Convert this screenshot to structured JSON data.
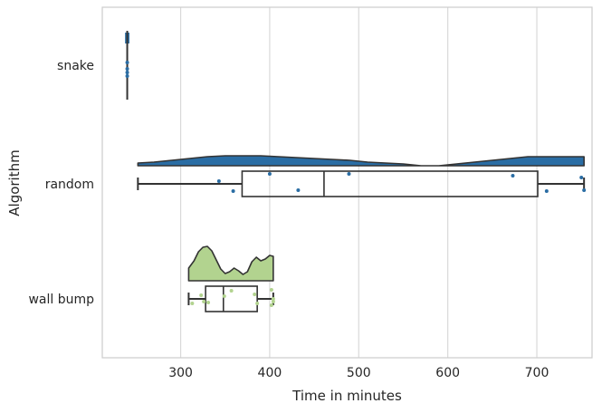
{
  "chart_data": {
    "type": "raincloud",
    "xlabel": "Time in minutes",
    "ylabel": "Algorithm",
    "xlim": [
      212,
      762
    ],
    "x_ticks": [
      300,
      400,
      500,
      600,
      700
    ],
    "x_tick_labels": [
      "300",
      "400",
      "500",
      "600",
      "700"
    ],
    "grid": "vertical",
    "categories": [
      "snake",
      "random",
      "wall bump"
    ],
    "series": [
      {
        "category": "snake",
        "color": "#2a6da4",
        "box": {
          "min": 240,
          "q1": 240,
          "median": 240,
          "q3": 240,
          "max": 240
        },
        "cloud_half_width": [
          2.4,
          2.4,
          2.4,
          2.4
        ],
        "cloud_density": [
          0.09,
          0.09,
          0.09,
          0.09
        ],
        "points": [
          [
            240,
            -0.03
          ],
          [
            240,
            0.04
          ],
          [
            240,
            0.08
          ],
          [
            240,
            0.12
          ]
        ]
      },
      {
        "category": "random",
        "color": "#2a6da4",
        "box": {
          "min": 252,
          "q1": 369,
          "median": 461,
          "q3": 701,
          "max": 753
        },
        "density_x": [
          252,
          270,
          290,
          310,
          330,
          350,
          370,
          390,
          410,
          430,
          450,
          470,
          490,
          510,
          530,
          550,
          570,
          590,
          610,
          630,
          650,
          670,
          690,
          710,
          730,
          753
        ],
        "density": [
          0.03,
          0.04,
          0.06,
          0.08,
          0.1,
          0.11,
          0.11,
          0.11,
          0.1,
          0.09,
          0.08,
          0.07,
          0.06,
          0.04,
          0.03,
          0.02,
          0.0,
          0.0,
          0.02,
          0.04,
          0.06,
          0.08,
          0.1,
          0.1,
          0.1,
          0.1
        ],
        "points": [
          [
            343,
            -0.03
          ],
          [
            359,
            0.08
          ],
          [
            400,
            -0.11
          ],
          [
            432,
            0.07
          ],
          [
            489,
            -0.11
          ],
          [
            673,
            -0.09
          ],
          [
            711,
            0.08
          ],
          [
            750,
            -0.07
          ],
          [
            753,
            0.07
          ]
        ]
      },
      {
        "category": "wall bump",
        "color": "#b2d38f",
        "box": {
          "min": 309,
          "q1": 328,
          "median": 348,
          "q3": 386,
          "max": 404
        },
        "density_x": [
          309,
          315,
          320,
          325,
          330,
          335,
          340,
          345,
          350,
          355,
          360,
          365,
          370,
          375,
          380,
          385,
          390,
          395,
          400,
          404
        ],
        "density": [
          0.14,
          0.22,
          0.32,
          0.37,
          0.38,
          0.33,
          0.23,
          0.13,
          0.08,
          0.1,
          0.14,
          0.11,
          0.07,
          0.1,
          0.21,
          0.26,
          0.22,
          0.24,
          0.28,
          0.27
        ],
        "points": [
          [
            313,
            0.05
          ],
          [
            323,
            -0.04
          ],
          [
            326,
            0.03
          ],
          [
            331,
            0.04
          ],
          [
            349,
            -0.03
          ],
          [
            357,
            -0.09
          ],
          [
            383,
            -0.05
          ],
          [
            386,
            0.05
          ],
          [
            402,
            -0.1
          ],
          [
            402,
            0.07
          ],
          [
            404,
            0.0
          ],
          [
            404,
            0.03
          ]
        ]
      }
    ]
  }
}
